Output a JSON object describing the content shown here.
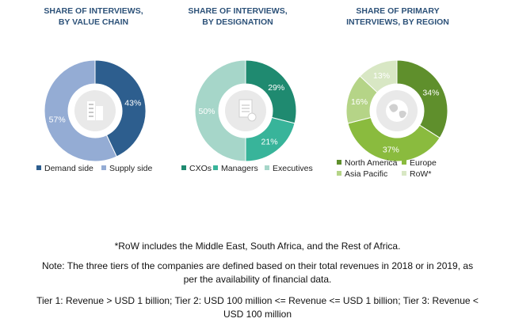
{
  "chart_data": [
    {
      "type": "pie",
      "title_lines": [
        "SHARE OF INTERVIEWS,",
        "BY VALUE CHAIN"
      ],
      "slices": [
        {
          "label": "Demand side",
          "value": 43,
          "text": "43%",
          "color": "#2d5e8e"
        },
        {
          "label": "Supply side",
          "value": 57,
          "text": "57%",
          "color": "#94acd4"
        }
      ]
    },
    {
      "type": "pie",
      "title_lines": [
        "SHARE OF INTERVIEWS,",
        "BY DESIGNATION"
      ],
      "slices": [
        {
          "label": "CXOs",
          "value": 29,
          "text": "29%",
          "color": "#1f8a70"
        },
        {
          "label": "Managers",
          "value": 21,
          "text": "21%",
          "color": "#38b49a"
        },
        {
          "label": "Executives",
          "value": 50,
          "text": "50%",
          "color": "#a6d6c9"
        }
      ]
    },
    {
      "type": "pie",
      "title_lines": [
        "SHARE OF PRIMARY",
        "INTERVIEWS, BY REGION"
      ],
      "slices": [
        {
          "label": "North America",
          "value": 34,
          "text": "34%",
          "color": "#5f8f2c"
        },
        {
          "label": "Europe",
          "value": 37,
          "text": "37%",
          "color": "#8abb3e"
        },
        {
          "label": "Asia Pacific",
          "value": 16,
          "text": "16%",
          "color": "#b5d487"
        },
        {
          "label": "RoW*",
          "value": 13,
          "text": "13%",
          "color": "#d8e7c4"
        }
      ]
    }
  ],
  "notes": {
    "row": "*RoW includes the Middle East, South Africa, and the Rest of Africa.",
    "tiers_line1": "Note: The three tiers of the companies are defined based on their total revenues in 2018 or in 2019, as",
    "tiers_line2": "per the availability of financial data.",
    "tier_def_line1": "Tier 1: Revenue > USD 1 billion; Tier 2: USD 100 million <= Revenue <= USD 1 billion; Tier 3: Revenue <",
    "tier_def_line2": "USD 100 million"
  }
}
